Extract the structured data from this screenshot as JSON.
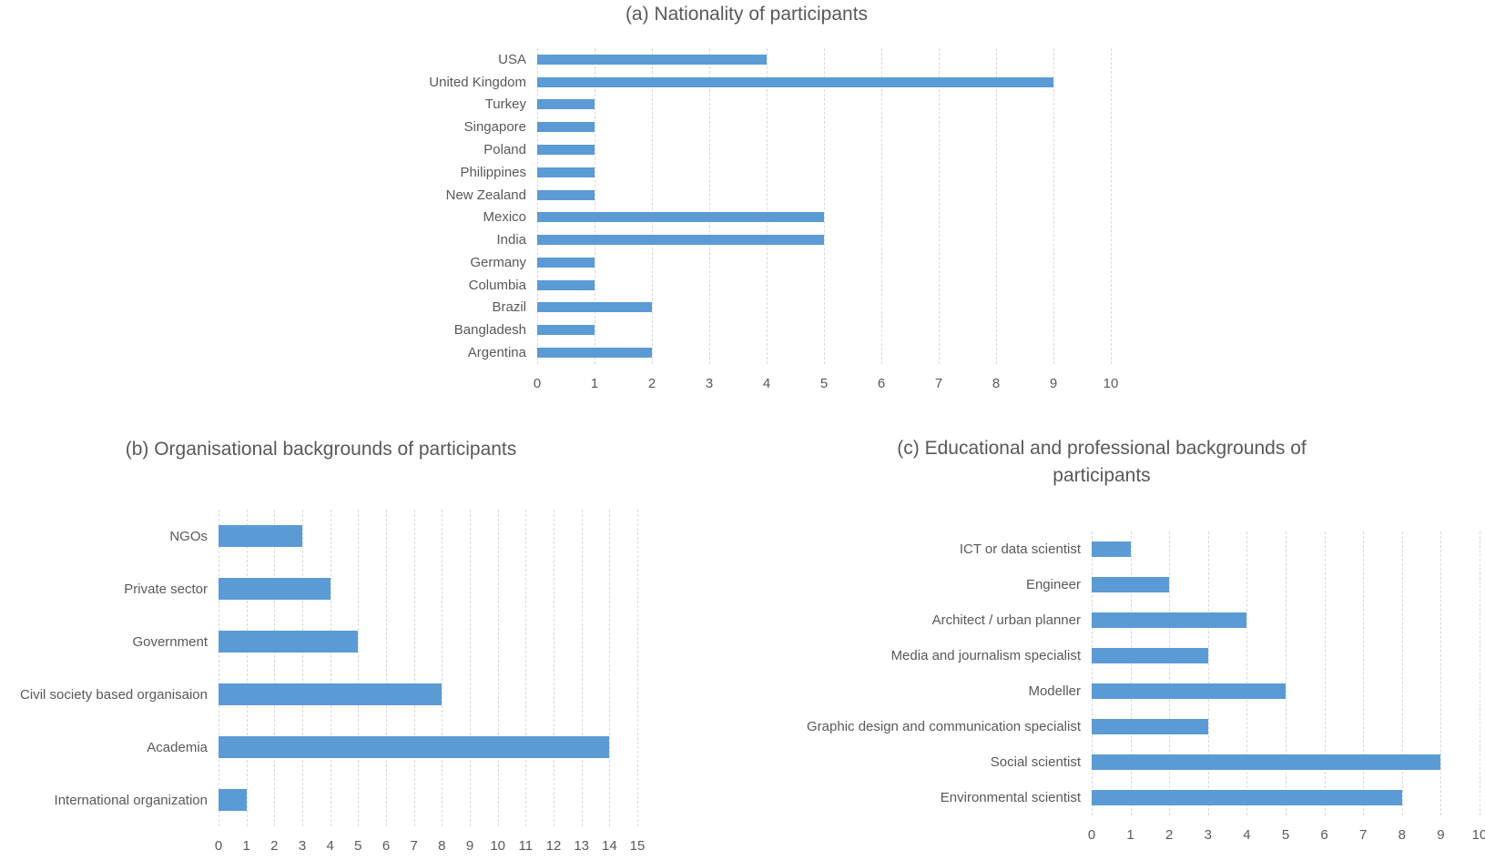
{
  "colors": {
    "bar": "#5B9BD5",
    "gridline": "#D9D9D9",
    "text": "#595959",
    "background": "#FFFFFF"
  },
  "chart_data": [
    {
      "type": "bar",
      "orientation": "horizontal",
      "title": "(a) Nationality of participants",
      "categories": [
        "USA",
        "United Kingdom",
        "Turkey",
        "Singapore",
        "Poland",
        "Philippines",
        "New Zealand",
        "Mexico",
        "India",
        "Germany",
        "Columbia",
        "Brazil",
        "Bangladesh",
        "Argentina"
      ],
      "values": [
        4,
        9,
        1,
        1,
        1,
        1,
        1,
        5,
        5,
        1,
        1,
        2,
        1,
        2
      ],
      "xlabel": "",
      "ylabel": "",
      "xlim": [
        0,
        10
      ],
      "xtick_step": 1,
      "grid": true,
      "legend": false
    },
    {
      "type": "bar",
      "orientation": "horizontal",
      "title": "(b) Organisational backgrounds of participants",
      "categories": [
        "NGOs",
        "Private sector",
        "Government",
        "Civil society based organisaion",
        "Academia",
        "International organization"
      ],
      "values": [
        3,
        4,
        5,
        8,
        14,
        1
      ],
      "xlabel": "",
      "ylabel": "",
      "xlim": [
        0,
        15
      ],
      "xtick_step": 1,
      "grid": true,
      "legend": false
    },
    {
      "type": "bar",
      "orientation": "horizontal",
      "title": "(c) Educational and professional backgrounds of participants",
      "categories": [
        "ICT or data scientist",
        "Engineer",
        "Architect / urban planner",
        "Media and journalism specialist",
        "Modeller",
        "Graphic design and communication specialist",
        "Social scientist",
        "Environmental scientist"
      ],
      "values": [
        1,
        2,
        4,
        3,
        5,
        3,
        9,
        8
      ],
      "xlabel": "",
      "ylabel": "",
      "xlim": [
        0,
        10
      ],
      "xtick_step": 1,
      "grid": true,
      "legend": false
    }
  ]
}
